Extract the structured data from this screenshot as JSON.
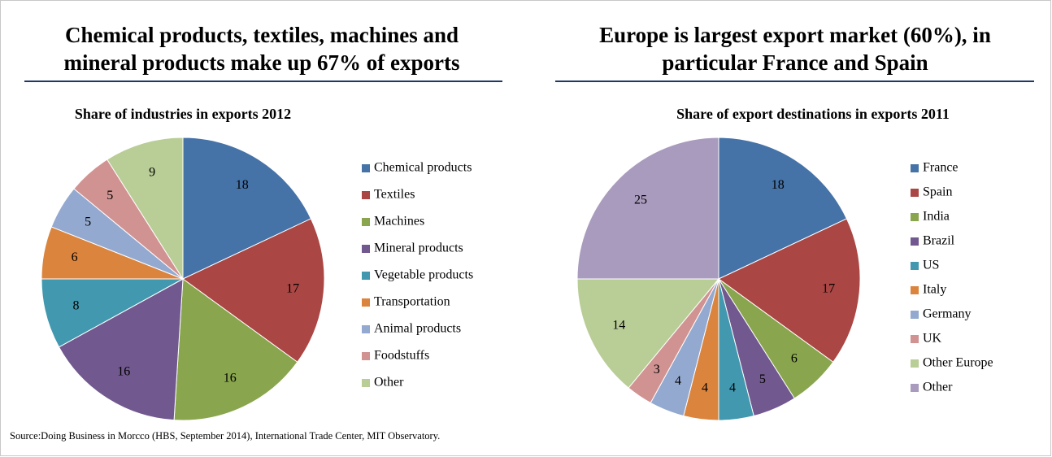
{
  "chart_data": [
    {
      "type": "pie",
      "headline": [
        "Chemical products, textiles, machines and",
        "mineral products make up 67% of exports"
      ],
      "title": "Share of industries in exports 2012",
      "categories": [
        "Chemical products",
        "Textiles",
        "Machines",
        "Mineral products",
        "Vegetable products",
        "Transportation",
        "Animal products",
        "Foodstuffs",
        "Other"
      ],
      "values": [
        18,
        17,
        16,
        16,
        8,
        6,
        5,
        5,
        9
      ],
      "colors": [
        "#4572a7",
        "#aa4643",
        "#89a54e",
        "#71588f",
        "#4198af",
        "#db843d",
        "#93a9cf",
        "#d19392",
        "#b9cd96"
      ]
    },
    {
      "type": "pie",
      "headline": [
        "Europe is largest export market (60%), in",
        "particular France and Spain"
      ],
      "title": "Share of export destinations in exports 2011",
      "categories": [
        "France",
        "Spain",
        "India",
        "Brazil",
        "US",
        "Italy",
        "Germany",
        "UK",
        "Other Europe",
        "Other"
      ],
      "values": [
        18,
        17,
        6,
        5,
        4,
        4,
        4,
        3,
        14,
        25
      ],
      "colors": [
        "#4572a7",
        "#aa4643",
        "#89a54e",
        "#71588f",
        "#4198af",
        "#db843d",
        "#93a9cf",
        "#d19392",
        "#b9cd96",
        "#a99bbd"
      ]
    }
  ],
  "source": "Source:Doing Business in Morcco (HBS, September 2014),  International Trade Center, MIT Observatory."
}
